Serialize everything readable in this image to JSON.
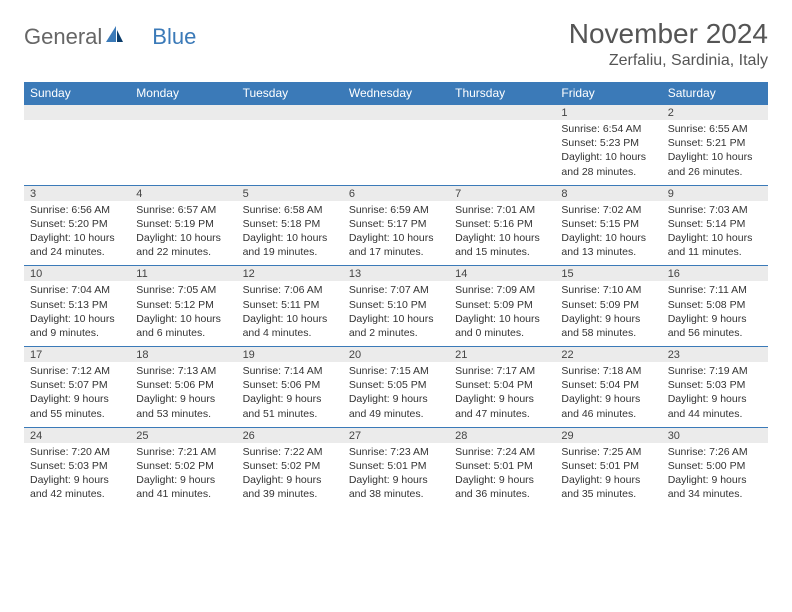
{
  "brand": {
    "part1": "General",
    "part2": "Blue"
  },
  "title": "November 2024",
  "location": "Zerfaliu, Sardinia, Italy",
  "colors": {
    "header_bg": "#3b7ab8",
    "header_fg": "#ffffff",
    "daynum_bg": "#ebebeb",
    "text": "#333333",
    "title": "#555555"
  },
  "dow": [
    "Sunday",
    "Monday",
    "Tuesday",
    "Wednesday",
    "Thursday",
    "Friday",
    "Saturday"
  ],
  "weeks": [
    [
      null,
      null,
      null,
      null,
      null,
      {
        "n": "1",
        "sr": "6:54 AM",
        "ss": "5:23 PM",
        "dl": "10 hours and 28 minutes."
      },
      {
        "n": "2",
        "sr": "6:55 AM",
        "ss": "5:21 PM",
        "dl": "10 hours and 26 minutes."
      }
    ],
    [
      {
        "n": "3",
        "sr": "6:56 AM",
        "ss": "5:20 PM",
        "dl": "10 hours and 24 minutes."
      },
      {
        "n": "4",
        "sr": "6:57 AM",
        "ss": "5:19 PM",
        "dl": "10 hours and 22 minutes."
      },
      {
        "n": "5",
        "sr": "6:58 AM",
        "ss": "5:18 PM",
        "dl": "10 hours and 19 minutes."
      },
      {
        "n": "6",
        "sr": "6:59 AM",
        "ss": "5:17 PM",
        "dl": "10 hours and 17 minutes."
      },
      {
        "n": "7",
        "sr": "7:01 AM",
        "ss": "5:16 PM",
        "dl": "10 hours and 15 minutes."
      },
      {
        "n": "8",
        "sr": "7:02 AM",
        "ss": "5:15 PM",
        "dl": "10 hours and 13 minutes."
      },
      {
        "n": "9",
        "sr": "7:03 AM",
        "ss": "5:14 PM",
        "dl": "10 hours and 11 minutes."
      }
    ],
    [
      {
        "n": "10",
        "sr": "7:04 AM",
        "ss": "5:13 PM",
        "dl": "10 hours and 9 minutes."
      },
      {
        "n": "11",
        "sr": "7:05 AM",
        "ss": "5:12 PM",
        "dl": "10 hours and 6 minutes."
      },
      {
        "n": "12",
        "sr": "7:06 AM",
        "ss": "5:11 PM",
        "dl": "10 hours and 4 minutes."
      },
      {
        "n": "13",
        "sr": "7:07 AM",
        "ss": "5:10 PM",
        "dl": "10 hours and 2 minutes."
      },
      {
        "n": "14",
        "sr": "7:09 AM",
        "ss": "5:09 PM",
        "dl": "10 hours and 0 minutes."
      },
      {
        "n": "15",
        "sr": "7:10 AM",
        "ss": "5:09 PM",
        "dl": "9 hours and 58 minutes."
      },
      {
        "n": "16",
        "sr": "7:11 AM",
        "ss": "5:08 PM",
        "dl": "9 hours and 56 minutes."
      }
    ],
    [
      {
        "n": "17",
        "sr": "7:12 AM",
        "ss": "5:07 PM",
        "dl": "9 hours and 55 minutes."
      },
      {
        "n": "18",
        "sr": "7:13 AM",
        "ss": "5:06 PM",
        "dl": "9 hours and 53 minutes."
      },
      {
        "n": "19",
        "sr": "7:14 AM",
        "ss": "5:06 PM",
        "dl": "9 hours and 51 minutes."
      },
      {
        "n": "20",
        "sr": "7:15 AM",
        "ss": "5:05 PM",
        "dl": "9 hours and 49 minutes."
      },
      {
        "n": "21",
        "sr": "7:17 AM",
        "ss": "5:04 PM",
        "dl": "9 hours and 47 minutes."
      },
      {
        "n": "22",
        "sr": "7:18 AM",
        "ss": "5:04 PM",
        "dl": "9 hours and 46 minutes."
      },
      {
        "n": "23",
        "sr": "7:19 AM",
        "ss": "5:03 PM",
        "dl": "9 hours and 44 minutes."
      }
    ],
    [
      {
        "n": "24",
        "sr": "7:20 AM",
        "ss": "5:03 PM",
        "dl": "9 hours and 42 minutes."
      },
      {
        "n": "25",
        "sr": "7:21 AM",
        "ss": "5:02 PM",
        "dl": "9 hours and 41 minutes."
      },
      {
        "n": "26",
        "sr": "7:22 AM",
        "ss": "5:02 PM",
        "dl": "9 hours and 39 minutes."
      },
      {
        "n": "27",
        "sr": "7:23 AM",
        "ss": "5:01 PM",
        "dl": "9 hours and 38 minutes."
      },
      {
        "n": "28",
        "sr": "7:24 AM",
        "ss": "5:01 PM",
        "dl": "9 hours and 36 minutes."
      },
      {
        "n": "29",
        "sr": "7:25 AM",
        "ss": "5:01 PM",
        "dl": "9 hours and 35 minutes."
      },
      {
        "n": "30",
        "sr": "7:26 AM",
        "ss": "5:00 PM",
        "dl": "9 hours and 34 minutes."
      }
    ]
  ],
  "labels": {
    "sunrise": "Sunrise: ",
    "sunset": "Sunset: ",
    "daylight": "Daylight: "
  }
}
